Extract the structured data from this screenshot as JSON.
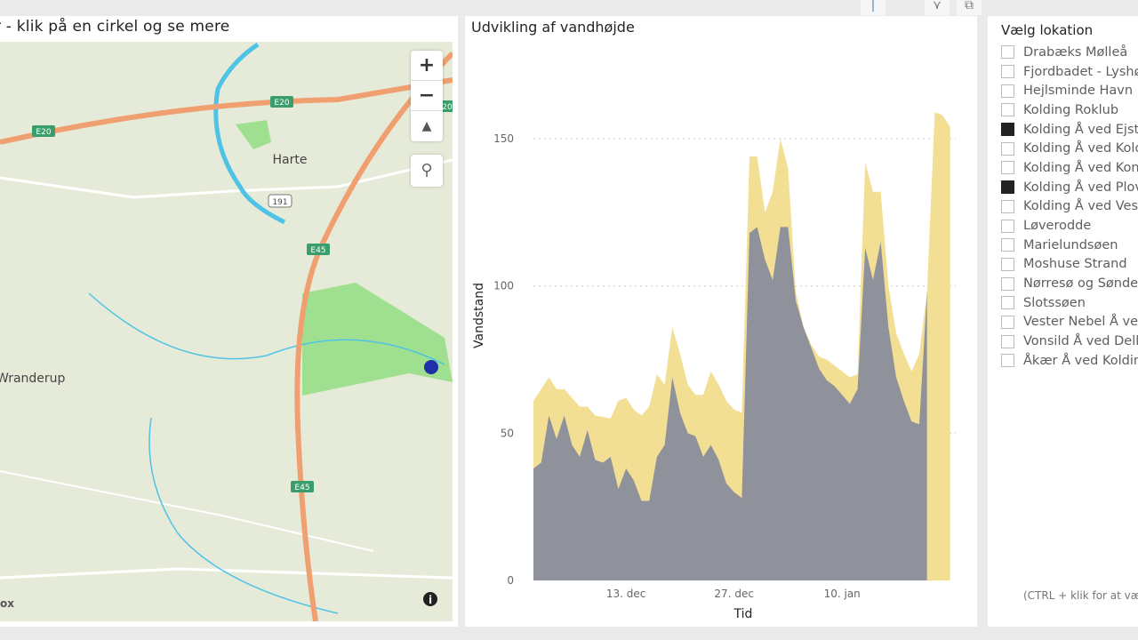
{
  "toolbar": {
    "icons": [
      "focus-mode-icon",
      "filter-icon",
      "expand-icon"
    ]
  },
  "map": {
    "title": "r - klik på en cirkel og se mere",
    "labels": {
      "e20": "E20",
      "e20b": "E20",
      "e20c": "20",
      "harte": "Harte",
      "r191": "191",
      "e45a": "E45",
      "e45b": "E45",
      "vranderup": "Wranderup",
      "attribution": "ox"
    },
    "controls": {
      "zoom_in": "+",
      "zoom_out": "−",
      "compass": "▲"
    },
    "marker_color": "#1f2fa8"
  },
  "chart": {
    "title": "Udvikling af vandhøjde"
  },
  "chart_data": {
    "type": "area",
    "xlabel": "Tid",
    "ylabel": "Vandstand",
    "ylim": [
      0,
      160
    ],
    "yticks": [
      "0",
      "50",
      "100",
      "150"
    ],
    "xticks": [
      {
        "label": "13. dec",
        "day": 13
      },
      {
        "label": "27. dec",
        "day": 27
      },
      {
        "label": "10. jan",
        "day": 41
      }
    ],
    "grid": true,
    "x_start": "30. nov",
    "series": [
      {
        "color": "#f2df94",
        "values": [
          61,
          65,
          69,
          65,
          65,
          62,
          59,
          59,
          56,
          55.5,
          55,
          61,
          62,
          58,
          56,
          59,
          70,
          66.5,
          86,
          77,
          66.5,
          63,
          63,
          71,
          66.5,
          61,
          58,
          57,
          144,
          144,
          125,
          132,
          150,
          140,
          98,
          86,
          80,
          76,
          75,
          73,
          71,
          69,
          70,
          142,
          132,
          132,
          100,
          84,
          77,
          71,
          77,
          98,
          159,
          158,
          154
        ]
      },
      {
        "color": "#8f929b",
        "values": [
          38,
          40,
          56,
          48,
          56,
          46,
          42,
          51,
          41,
          40,
          42,
          31,
          38,
          34,
          27,
          27,
          42,
          46,
          69,
          57,
          50,
          49,
          42,
          46,
          41,
          33,
          30,
          28,
          118,
          120,
          109,
          102,
          120,
          120,
          95,
          86,
          79,
          72,
          68,
          66,
          63,
          60,
          65,
          113,
          102,
          115,
          86,
          69,
          61,
          54,
          53,
          98
        ]
      }
    ]
  },
  "slicer": {
    "title": "Vælg lokation",
    "items": [
      {
        "label": "Drabæks Mølleå",
        "checked": false
      },
      {
        "label": "Fjordbadet - Lyshøj",
        "checked": false
      },
      {
        "label": "Hejlsminde Havn",
        "checked": false
      },
      {
        "label": "Kolding Roklub",
        "checked": false
      },
      {
        "label": "Kolding Å ved Ejstrup",
        "checked": true
      },
      {
        "label": "Kolding Å ved Kolding",
        "checked": false
      },
      {
        "label": "Kolding Å ved Kongsbjerg",
        "checked": false
      },
      {
        "label": "Kolding Å ved Plovstrup",
        "checked": true
      },
      {
        "label": "Kolding Å ved Vester",
        "checked": false
      },
      {
        "label": "Løverodde",
        "checked": false
      },
      {
        "label": "Marielundsøen",
        "checked": false
      },
      {
        "label": "Moshuse Strand",
        "checked": false
      },
      {
        "label": "Nørresø og Søndersø",
        "checked": false
      },
      {
        "label": "Slotssøen",
        "checked": false
      },
      {
        "label": "Vester Nebel Å ved",
        "checked": false
      },
      {
        "label": "Vonsild Å ved Delkolding",
        "checked": false
      },
      {
        "label": "Åkær Å ved Kolding",
        "checked": false
      }
    ],
    "hint": "(CTRL + klik for at vælge flere)"
  }
}
